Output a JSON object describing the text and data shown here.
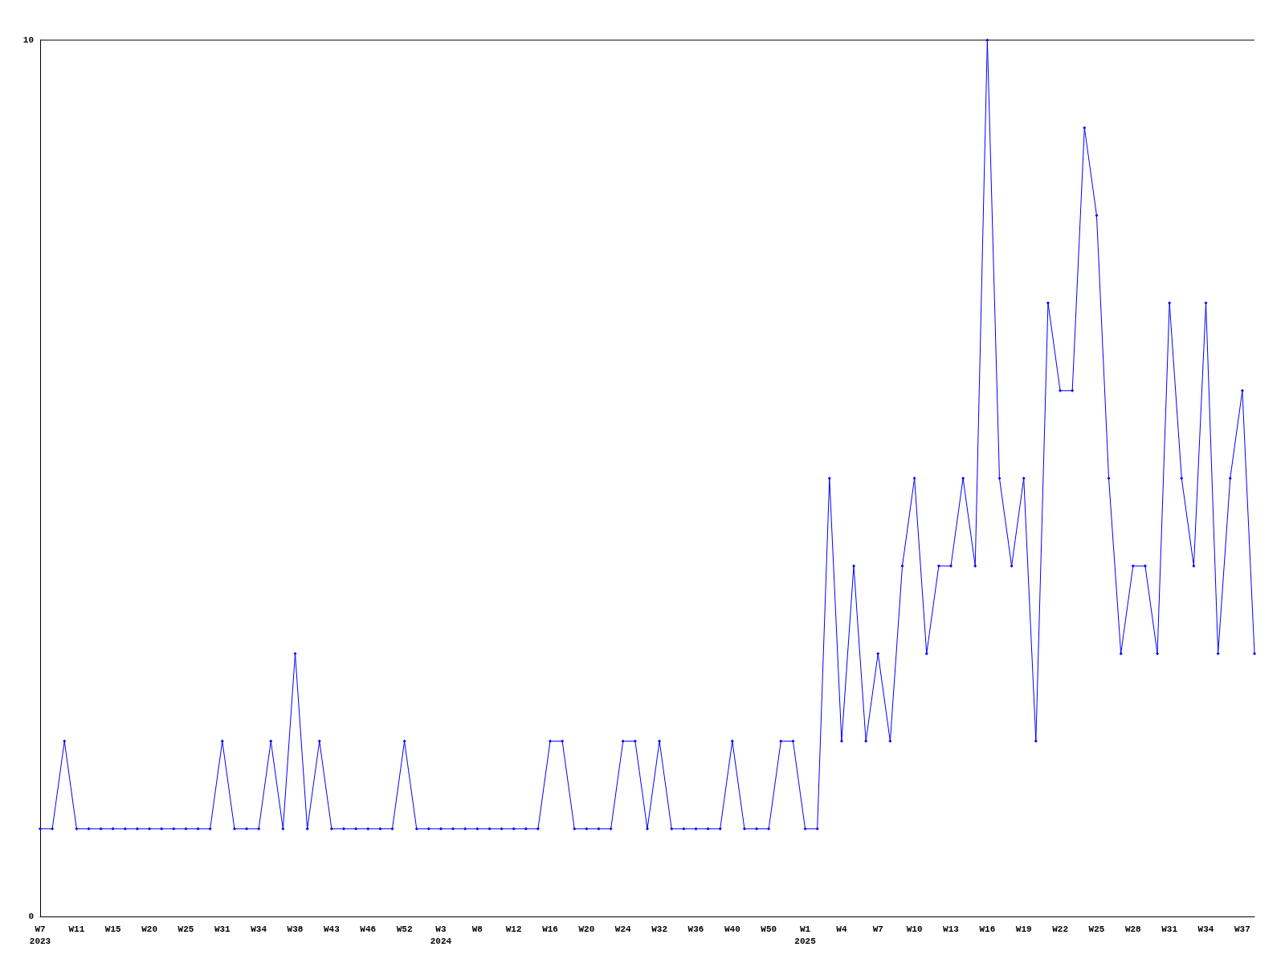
{
  "chart_data": {
    "type": "line",
    "categories": [
      "W7\n2023",
      null,
      null,
      "W11",
      null,
      null,
      "W15",
      null,
      null,
      "W20",
      null,
      null,
      "W25",
      null,
      null,
      "W31",
      null,
      null,
      "W34",
      null,
      null,
      "W38",
      null,
      null,
      "W43",
      null,
      null,
      "W46",
      null,
      null,
      "W52",
      null,
      null,
      "W3\n2024",
      null,
      null,
      "W8",
      null,
      null,
      "W12",
      null,
      null,
      "W16",
      null,
      null,
      "W20",
      null,
      null,
      "W24",
      null,
      null,
      "W32",
      null,
      null,
      "W36",
      null,
      null,
      "W40",
      null,
      null,
      "W50",
      null,
      null,
      "W1\n2025",
      null,
      null,
      "W4",
      null,
      null,
      "W7",
      null,
      null,
      "W10",
      null,
      null,
      "W13",
      null,
      null,
      "W16",
      null,
      null,
      "W19",
      null,
      null,
      "W22",
      null,
      null,
      "W25",
      null,
      null,
      "W28",
      null,
      null,
      "W31",
      null,
      null,
      "W34",
      null,
      null,
      "W37",
      null
    ],
    "series": [
      {
        "color": "#0000ff",
        "values": [
          1,
          1,
          2,
          1,
          1,
          1,
          1,
          1,
          1,
          1,
          1,
          1,
          1,
          1,
          1,
          2,
          1,
          1,
          1,
          2,
          1,
          3,
          1,
          2,
          1,
          1,
          1,
          1,
          1,
          1,
          2,
          1,
          1,
          1,
          1,
          1,
          1,
          1,
          1,
          1,
          1,
          1,
          2,
          2,
          1,
          1,
          1,
          1,
          2,
          2,
          1,
          2,
          1,
          1,
          1,
          1,
          1,
          2,
          1,
          1,
          1,
          2,
          2,
          1,
          1,
          5,
          2,
          4,
          2,
          3,
          2,
          4,
          5,
          3,
          4,
          4,
          5,
          4,
          10,
          5,
          4,
          5,
          2,
          7,
          6,
          6,
          9,
          8,
          5,
          3,
          4,
          4,
          3,
          7,
          5,
          4,
          7,
          3,
          5,
          6,
          3
        ]
      }
    ],
    "ylim": [
      0,
      10
    ],
    "yticks": [
      0,
      10
    ],
    "marker": "diamond",
    "line_style": "solid"
  }
}
